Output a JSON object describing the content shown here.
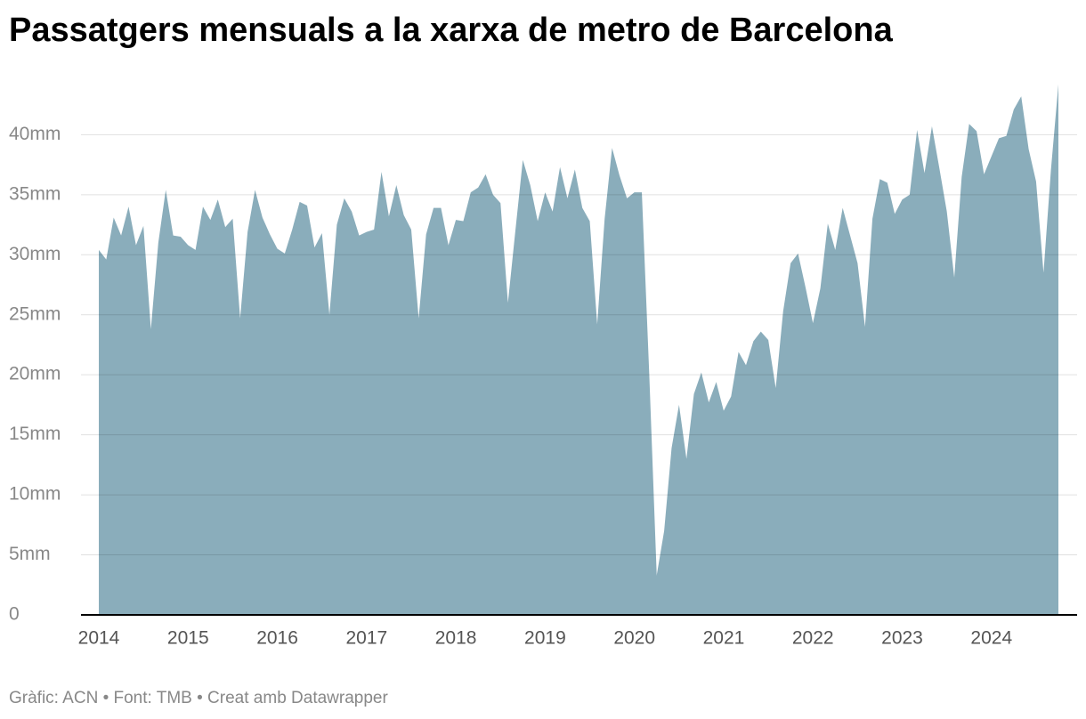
{
  "chart_data": {
    "type": "area",
    "title": "Passatgers mensuals a la xarxa de metro de Barcelona",
    "source": "Gràfic: ACN • Font: TMB • Creat amb Datawrapper",
    "color": "#8aadbb",
    "grid": true,
    "ylim": [
      0,
      44.4
    ],
    "yticks": [
      0,
      {
        "value": 5,
        "label": "5mm"
      },
      {
        "value": 10,
        "label": "10mm"
      },
      {
        "value": 15,
        "label": "15mm"
      },
      {
        "value": 20,
        "label": "20mm"
      },
      {
        "value": 25,
        "label": "25mm"
      },
      {
        "value": 30,
        "label": "30mm"
      },
      {
        "value": 35,
        "label": "35mm"
      },
      {
        "value": 40,
        "label": "40mm"
      }
    ],
    "categories": [
      "2014",
      null,
      null,
      null,
      null,
      null,
      null,
      null,
      null,
      null,
      null,
      null,
      "2015",
      null,
      null,
      null,
      null,
      null,
      null,
      null,
      null,
      null,
      null,
      null,
      "2016",
      null,
      null,
      null,
      null,
      null,
      null,
      null,
      null,
      null,
      null,
      null,
      "2017",
      null,
      null,
      null,
      null,
      null,
      null,
      null,
      null,
      null,
      null,
      null,
      "2018",
      null,
      null,
      null,
      null,
      null,
      null,
      null,
      null,
      null,
      null,
      null,
      "2019",
      null,
      null,
      null,
      null,
      null,
      null,
      null,
      null,
      null,
      null,
      null,
      "2020",
      null,
      null,
      null,
      null,
      null,
      null,
      null,
      null,
      null,
      null,
      null,
      "2021",
      null,
      null,
      null,
      null,
      null,
      null,
      null,
      null,
      null,
      null,
      null,
      "2022",
      null,
      null,
      null,
      null,
      null,
      null,
      null,
      null,
      null,
      null,
      null,
      "2023",
      null,
      null,
      null,
      null,
      null,
      null,
      null,
      null,
      null,
      null,
      null,
      "2024",
      null,
      null,
      null,
      null,
      null,
      null,
      null,
      null,
      null
    ],
    "values": [
      30.4,
      29.6,
      33.1,
      31.6,
      34.0,
      30.8,
      32.4,
      23.8,
      31.0,
      35.4,
      31.6,
      31.5,
      30.8,
      30.4,
      34.0,
      32.9,
      34.6,
      32.3,
      33.0,
      24.7,
      31.9,
      35.4,
      33.1,
      31.7,
      30.5,
      30.1,
      32.1,
      34.4,
      34.1,
      30.6,
      31.8,
      25.0,
      32.5,
      34.7,
      33.6,
      31.6,
      31.9,
      32.1,
      36.9,
      33.2,
      35.8,
      33.3,
      32.1,
      24.7,
      31.7,
      33.9,
      33.9,
      30.8,
      32.9,
      32.8,
      35.2,
      35.6,
      36.7,
      35.0,
      34.3,
      26.0,
      32.0,
      37.9,
      35.8,
      32.8,
      35.2,
      33.6,
      37.3,
      34.7,
      37.1,
      33.9,
      32.8,
      24.2,
      33.0,
      38.9,
      36.6,
      34.7,
      35.2,
      35.2,
      20.0,
      3.3,
      7.0,
      13.9,
      17.5,
      13.0,
      18.4,
      20.2,
      17.7,
      19.4,
      17.0,
      18.2,
      21.9,
      20.8,
      22.8,
      23.6,
      22.9,
      18.9,
      25.3,
      29.3,
      30.1,
      27.3,
      24.3,
      27.2,
      32.6,
      30.4,
      33.9,
      31.6,
      29.3,
      24.0,
      33.0,
      36.3,
      36.0,
      33.4,
      34.6,
      35.0,
      40.4,
      36.8,
      40.7,
      37.2,
      33.6,
      28.1,
      36.5,
      40.9,
      40.3,
      36.7,
      38.2,
      39.7,
      39.9,
      42.1,
      43.2,
      38.8,
      36.1,
      28.5,
      37.1,
      44.2
    ]
  }
}
